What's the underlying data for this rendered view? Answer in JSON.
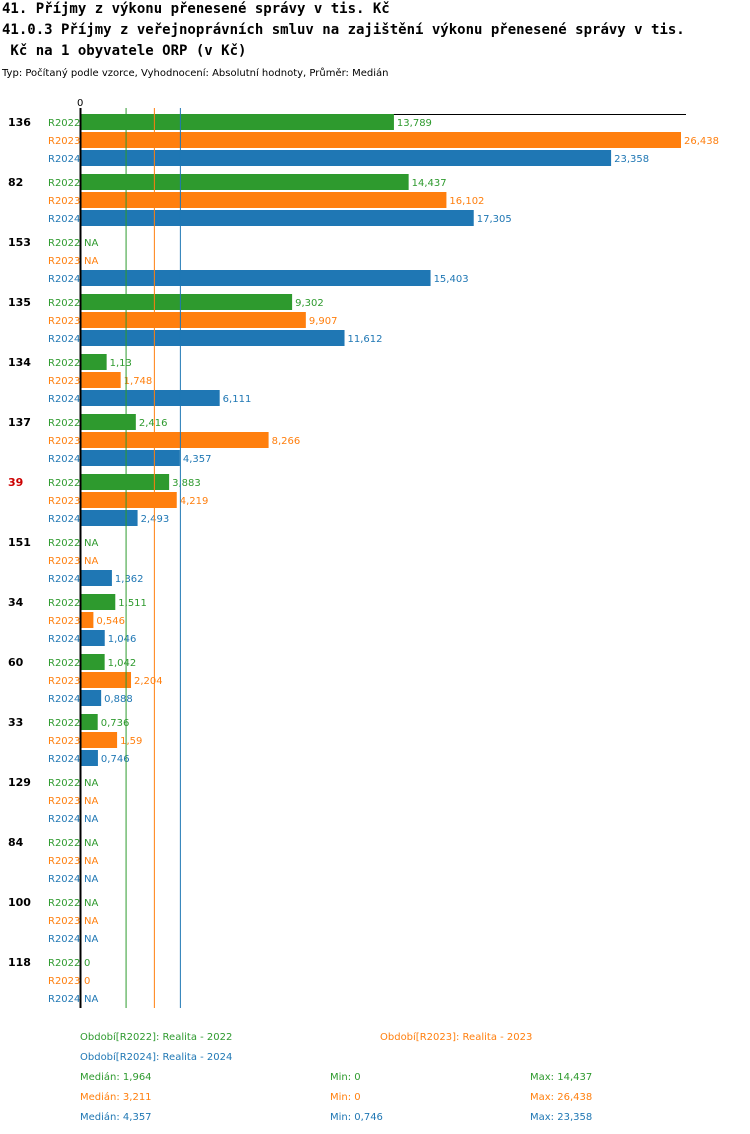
{
  "chart_data": {
    "type": "bar",
    "orientation": "horizontal",
    "title_line1": "41. Příjmy z výkonu přenesené správy v tis. Kč",
    "title_line2": "41.0.3 Příjmy z veřejnoprávních smluv na zajištění výkonu přenesené správy v tis.",
    "title_line3": " Kč na 1 obyvatele ORP (v Kč)",
    "subtitle": "Typ: Počítaný podle vzorce, Vyhodnocení: Absolutní hodnoty, Průměr: Medián",
    "axis_zero_label": "0",
    "xlim": [
      0,
      26.438
    ],
    "highlight_category": "39",
    "highlight_color": "#cc0000",
    "series": [
      {
        "name": "R2022",
        "color": "#2e9a2e"
      },
      {
        "name": "R2023",
        "color": "#ff7f0e"
      },
      {
        "name": "R2024",
        "color": "#1f77b4"
      }
    ],
    "categories": [
      "136",
      "82",
      "153",
      "135",
      "134",
      "137",
      "39",
      "151",
      "34",
      "60",
      "33",
      "129",
      "84",
      "100",
      "118"
    ],
    "values": [
      [
        13.789,
        26.438,
        23.358
      ],
      [
        14.437,
        16.102,
        17.305
      ],
      [
        null,
        null,
        15.403
      ],
      [
        9.302,
        9.907,
        11.612
      ],
      [
        1.13,
        1.748,
        6.111
      ],
      [
        2.416,
        8.266,
        4.357
      ],
      [
        3.883,
        4.219,
        2.493
      ],
      [
        null,
        null,
        1.362
      ],
      [
        1.511,
        0.546,
        1.046
      ],
      [
        1.042,
        2.204,
        0.888
      ],
      [
        0.736,
        1.59,
        0.746
      ],
      [
        null,
        null,
        null
      ],
      [
        null,
        null,
        null
      ],
      [
        null,
        null,
        null
      ],
      [
        0,
        0,
        null
      ]
    ],
    "value_labels": [
      [
        "13,789",
        "26,438",
        "23,358"
      ],
      [
        "14,437",
        "16,102",
        "17,305"
      ],
      [
        "NA",
        "NA",
        "15,403"
      ],
      [
        "9,302",
        "9,907",
        "11,612"
      ],
      [
        "1,13",
        "1,748",
        "6,111"
      ],
      [
        "2,416",
        "8,266",
        "4,357"
      ],
      [
        "3,883",
        "4,219",
        "2,493"
      ],
      [
        "NA",
        "NA",
        "1,362"
      ],
      [
        "1,511",
        "0,546",
        "1,046"
      ],
      [
        "1,042",
        "2,204",
        "0,888"
      ],
      [
        "0,736",
        "1,59",
        "0,746"
      ],
      [
        "NA",
        "NA",
        "NA"
      ],
      [
        "NA",
        "NA",
        "NA"
      ],
      [
        "NA",
        "NA",
        "NA"
      ],
      [
        "0",
        "0",
        "NA"
      ]
    ],
    "medians": [
      1.964,
      3.211,
      4.357
    ],
    "legend": {
      "periods": [
        "Období[R2022]: Realita - 2022",
        "Období[R2023]: Realita - 2023",
        "Období[R2024]: Realita - 2024"
      ],
      "stats": [
        [
          "Medián: 1,964",
          "Min: 0",
          "Max: 14,437"
        ],
        [
          "Medián: 3,211",
          "Min: 0",
          "Max: 26,438"
        ],
        [
          "Medián: 4,357",
          "Min: 0,746",
          "Max: 23,358"
        ]
      ]
    }
  }
}
